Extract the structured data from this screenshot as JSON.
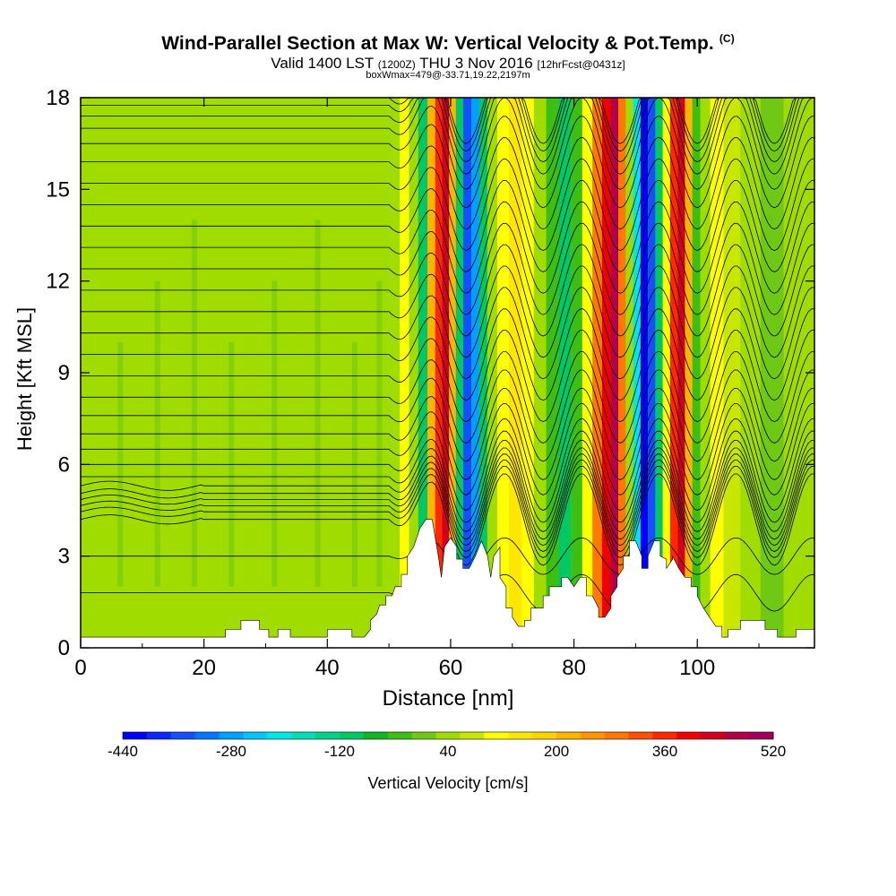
{
  "header": {
    "title": "Wind-Parallel Section at Max W: Vertical Velocity & Pot.Temp.",
    "copyright": "(C)",
    "valid_prefix": "Valid 1400 LST",
    "valid_utc": "(1200Z)",
    "valid_date": "THU 3 Nov 2016",
    "forecast": "[12hrFcst@0431z]",
    "box_info": "boxWmax=479@-33.71,19.22,2197m"
  },
  "chart_data": {
    "type": "heatmap",
    "title": "Wind-Parallel Section at Max W: Vertical Velocity & Pot.Temp.",
    "xlabel": "Distance [nm]",
    "ylabel": "Height [Kft MSL]",
    "xlim": [
      0,
      119
    ],
    "ylim": [
      0,
      18
    ],
    "x_ticks": [
      "0",
      "20",
      "40",
      "60",
      "80",
      "100"
    ],
    "y_ticks": [
      "0",
      "3",
      "6",
      "9",
      "12",
      "15",
      "18"
    ],
    "colorbar": {
      "label": "Vertical Velocity [cm/s]",
      "tick_labels": [
        "-440",
        "-280",
        "-120",
        "40",
        "200",
        "360",
        "520"
      ],
      "range": [
        -440,
        520
      ],
      "colors": [
        "#0000ff",
        "#0a28ff",
        "#1450ff",
        "#0078ff",
        "#00a0ff",
        "#00c8ff",
        "#00e6e6",
        "#00dcb4",
        "#00d28c",
        "#00c864",
        "#14b428",
        "#3cbe14",
        "#6ec814",
        "#a0dc00",
        "#c8e600",
        "#ffff00",
        "#ffe600",
        "#ffd200",
        "#ffb400",
        "#ff9600",
        "#ff7800",
        "#ff5000",
        "#ff2800",
        "#f00000",
        "#d2001e",
        "#b40046",
        "#a0005a"
      ]
    },
    "terrain_kft": [
      [
        0,
        0.35
      ],
      [
        2,
        0.35
      ],
      [
        4,
        0.35
      ],
      [
        6,
        0.35
      ],
      [
        8,
        0.35
      ],
      [
        10,
        0.35
      ],
      [
        12,
        0.35
      ],
      [
        14,
        0.35
      ],
      [
        16,
        0.35
      ],
      [
        18,
        0.35
      ],
      [
        20,
        0.35
      ],
      [
        22,
        0.35
      ],
      [
        23.5,
        0.35
      ],
      [
        23.5,
        0.6
      ],
      [
        26,
        0.6
      ],
      [
        26,
        0.9
      ],
      [
        29,
        0.9
      ],
      [
        29,
        0.6
      ],
      [
        30.5,
        0.6
      ],
      [
        30.5,
        0.35
      ],
      [
        32,
        0.35
      ],
      [
        32,
        0.6
      ],
      [
        34,
        0.6
      ],
      [
        34,
        0.35
      ],
      [
        40,
        0.35
      ],
      [
        40,
        0.6
      ],
      [
        44,
        0.6
      ],
      [
        44,
        0.35
      ],
      [
        46,
        0.35
      ],
      [
        47,
        0.6
      ],
      [
        47,
        0.9
      ],
      [
        48,
        1.1
      ],
      [
        48.5,
        1.4
      ],
      [
        49.5,
        1.4
      ],
      [
        49.5,
        1.7
      ],
      [
        50.5,
        1.7
      ],
      [
        51,
        2.0
      ],
      [
        52,
        2.0
      ],
      [
        52,
        2.4
      ],
      [
        53,
        2.4
      ],
      [
        53,
        3.0
      ],
      [
        54,
        3.3
      ],
      [
        55,
        3.9
      ],
      [
        56,
        4.2
      ],
      [
        57,
        4.2
      ],
      [
        58,
        3.0
      ],
      [
        58.5,
        2.3
      ],
      [
        59,
        3.3
      ],
      [
        60,
        3.6
      ],
      [
        61,
        3.3
      ],
      [
        61,
        2.9
      ],
      [
        62,
        2.9
      ],
      [
        62,
        2.6
      ],
      [
        63,
        2.6
      ],
      [
        64,
        3.0
      ],
      [
        65,
        3.5
      ],
      [
        66,
        3.0
      ],
      [
        66.5,
        2.3
      ],
      [
        67,
        3.0
      ],
      [
        68,
        3.3
      ],
      [
        68,
        2.3
      ],
      [
        69,
        2.0
      ],
      [
        69,
        1.3
      ],
      [
        70,
        1.3
      ],
      [
        70,
        1.0
      ],
      [
        71,
        0.7
      ],
      [
        72,
        0.7
      ],
      [
        72,
        0.9
      ],
      [
        73,
        0.9
      ],
      [
        73,
        1.3
      ],
      [
        75,
        1.3
      ],
      [
        75,
        1.7
      ],
      [
        76,
        1.7
      ],
      [
        76,
        2.0
      ],
      [
        78,
        2.0
      ],
      [
        78,
        2.3
      ],
      [
        79,
        2.3
      ],
      [
        80,
        2.0
      ],
      [
        81,
        2.3
      ],
      [
        82,
        2.3
      ],
      [
        82,
        1.7
      ],
      [
        83,
        1.7
      ],
      [
        84,
        1.3
      ],
      [
        84,
        1.0
      ],
      [
        85,
        1.0
      ],
      [
        86,
        1.3
      ],
      [
        86,
        1.7
      ],
      [
        87,
        2.0
      ],
      [
        87,
        2.3
      ],
      [
        88,
        2.6
      ],
      [
        88,
        3.0
      ],
      [
        89,
        3.0
      ],
      [
        89,
        3.5
      ],
      [
        90,
        3.5
      ],
      [
        91,
        3.0
      ],
      [
        91,
        2.6
      ],
      [
        92,
        2.6
      ],
      [
        92,
        3.0
      ],
      [
        93,
        3.5
      ],
      [
        94,
        3.5
      ],
      [
        94,
        3.0
      ],
      [
        95,
        2.9
      ],
      [
        95,
        2.6
      ],
      [
        96,
        2.9
      ],
      [
        96,
        3.0
      ],
      [
        97,
        2.6
      ],
      [
        98,
        2.3
      ],
      [
        99,
        2.3
      ],
      [
        99,
        2.0
      ],
      [
        100,
        2.0
      ],
      [
        100,
        1.7
      ],
      [
        101,
        1.3
      ],
      [
        102,
        1.0
      ],
      [
        103,
        0.7
      ],
      [
        104,
        0.7
      ],
      [
        104,
        0.35
      ],
      [
        105,
        0.35
      ],
      [
        105,
        0.6
      ],
      [
        107,
        0.6
      ],
      [
        107,
        0.9
      ],
      [
        111,
        0.9
      ],
      [
        111,
        0.6
      ],
      [
        113,
        0.6
      ],
      [
        113,
        0.35
      ],
      [
        116,
        0.35
      ],
      [
        116,
        0.6
      ],
      [
        119,
        0.6
      ]
    ],
    "bands": [
      {
        "x": 51.0,
        "value": 40
      },
      {
        "x": 52.5,
        "value": 120
      },
      {
        "x": 54.0,
        "value": 40
      },
      {
        "x": 55.5,
        "value": -120
      },
      {
        "x": 57.0,
        "value": 200
      },
      {
        "x": 58.0,
        "value": 360
      },
      {
        "x": 59.2,
        "value": 440
      },
      {
        "x": 60.3,
        "value": 200
      },
      {
        "x": 61.4,
        "value": -120
      },
      {
        "x": 62.7,
        "value": -360
      },
      {
        "x": 64.0,
        "value": -280
      },
      {
        "x": 65.3,
        "value": -120
      },
      {
        "x": 66.6,
        "value": 40
      },
      {
        "x": 68.5,
        "value": 120
      },
      {
        "x": 70.5,
        "value": 160
      },
      {
        "x": 72.5,
        "value": 120
      },
      {
        "x": 74.5,
        "value": 40
      },
      {
        "x": 76.5,
        "value": -40
      },
      {
        "x": 78.5,
        "value": -120
      },
      {
        "x": 80.5,
        "value": -40
      },
      {
        "x": 82.2,
        "value": 120
      },
      {
        "x": 83.8,
        "value": 280
      },
      {
        "x": 85.3,
        "value": 400
      },
      {
        "x": 86.6,
        "value": 480
      },
      {
        "x": 87.8,
        "value": 280
      },
      {
        "x": 89.0,
        "value": 40
      },
      {
        "x": 90.2,
        "value": -200
      },
      {
        "x": 91.4,
        "value": -440
      },
      {
        "x": 92.6,
        "value": -360
      },
      {
        "x": 93.8,
        "value": -120
      },
      {
        "x": 95.0,
        "value": 120
      },
      {
        "x": 96.2,
        "value": 360
      },
      {
        "x": 97.4,
        "value": 440
      },
      {
        "x": 98.6,
        "value": 200
      },
      {
        "x": 99.8,
        "value": -40
      },
      {
        "x": 101.2,
        "value": 40
      },
      {
        "x": 103.0,
        "value": 120
      },
      {
        "x": 105.5,
        "value": 80
      },
      {
        "x": 108.5,
        "value": 40
      },
      {
        "x": 112.0,
        "value": 0
      },
      {
        "x": 116.0,
        "value": 40
      }
    ],
    "isentropes": {
      "count": 30,
      "base_heights_kft": [
        1.8,
        3.0,
        4.2,
        4.45,
        4.65,
        4.85,
        5.05,
        5.3,
        5.6,
        6.0,
        6.5,
        7.0,
        7.6,
        8.2,
        8.9,
        9.6,
        10.3,
        11.0,
        11.7,
        12.4,
        13.1,
        13.8,
        14.5,
        15.2,
        15.9,
        16.5,
        17.0,
        17.4,
        17.75,
        18.0
      ],
      "wave_crests_nm": [
        62.0,
        75.0,
        88.0,
        100.0
      ]
    }
  },
  "colorbar_label": "Vertical Velocity [cm/s]"
}
